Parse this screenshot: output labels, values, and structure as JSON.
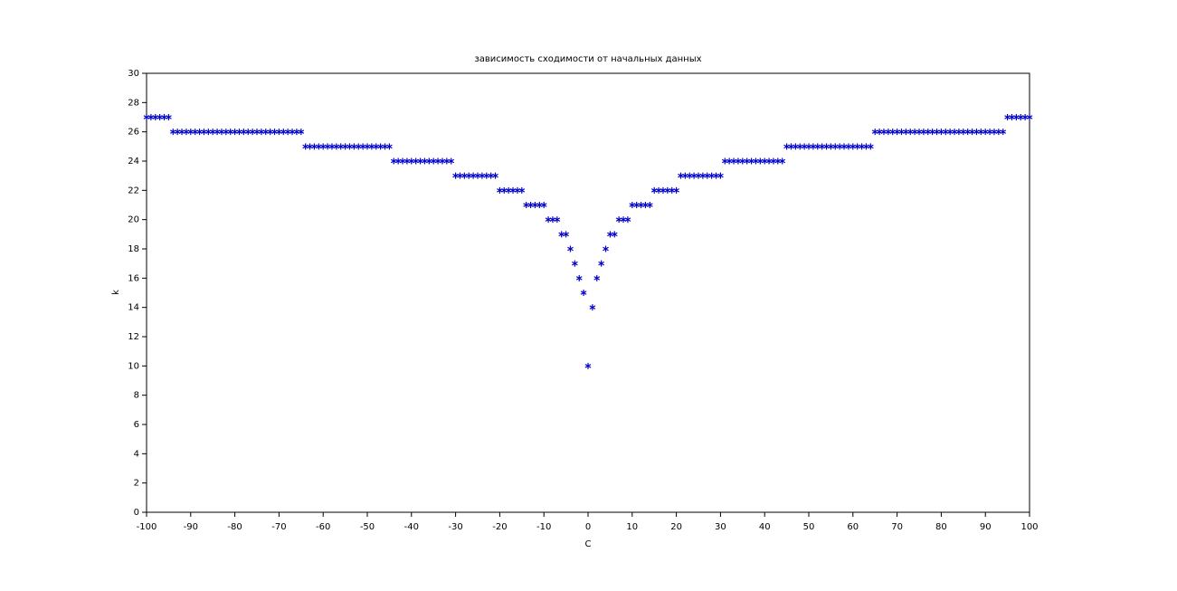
{
  "chart_data": {
    "type": "scatter",
    "title": "зависимость сходимости от начальных данных",
    "x_label": "C",
    "y_label": "k",
    "marker": "*",
    "color": "#0000cc",
    "x": [
      -100,
      -99,
      -98,
      -97,
      -96,
      -95,
      -94,
      -93,
      -92,
      -91,
      -90,
      -89,
      -88,
      -87,
      -86,
      -85,
      -84,
      -83,
      -82,
      -81,
      -80,
      -79,
      -78,
      -77,
      -76,
      -75,
      -74,
      -73,
      -72,
      -71,
      -70,
      -69,
      -68,
      -67,
      -66,
      -65,
      -64,
      -63,
      -62,
      -61,
      -60,
      -59,
      -58,
      -57,
      -56,
      -55,
      -54,
      -53,
      -52,
      -51,
      -50,
      -49,
      -48,
      -47,
      -46,
      -45,
      -44,
      -43,
      -42,
      -41,
      -40,
      -39,
      -38,
      -37,
      -36,
      -35,
      -34,
      -33,
      -32,
      -31,
      -30,
      -29,
      -28,
      -27,
      -26,
      -25,
      -24,
      -23,
      -22,
      -21,
      -20,
      -19,
      -18,
      -17,
      -16,
      -15,
      -14,
      -13,
      -12,
      -11,
      -10,
      -9,
      -8,
      -7,
      -6,
      -5,
      -4,
      -3,
      -2,
      -1,
      0,
      1,
      2,
      3,
      4,
      5,
      6,
      7,
      8,
      9,
      10,
      11,
      12,
      13,
      14,
      15,
      16,
      17,
      18,
      19,
      20,
      21,
      22,
      23,
      24,
      25,
      26,
      27,
      28,
      29,
      30,
      31,
      32,
      33,
      34,
      35,
      36,
      37,
      38,
      39,
      40,
      41,
      42,
      43,
      44,
      45,
      46,
      47,
      48,
      49,
      50,
      51,
      52,
      53,
      54,
      55,
      56,
      57,
      58,
      59,
      60,
      61,
      62,
      63,
      64,
      65,
      66,
      67,
      68,
      69,
      70,
      71,
      72,
      73,
      74,
      75,
      76,
      77,
      78,
      79,
      80,
      81,
      82,
      83,
      84,
      85,
      86,
      87,
      88,
      89,
      90,
      91,
      92,
      93,
      94,
      95,
      96,
      97,
      98,
      99,
      100
    ],
    "values": [
      27,
      27,
      27,
      27,
      27,
      27,
      26,
      26,
      26,
      26,
      26,
      26,
      26,
      26,
      26,
      26,
      26,
      26,
      26,
      26,
      26,
      26,
      26,
      26,
      26,
      26,
      26,
      26,
      26,
      26,
      26,
      26,
      26,
      26,
      26,
      26,
      25,
      25,
      25,
      25,
      25,
      25,
      25,
      25,
      25,
      25,
      25,
      25,
      25,
      25,
      25,
      25,
      25,
      25,
      25,
      25,
      24,
      24,
      24,
      24,
      24,
      24,
      24,
      24,
      24,
      24,
      24,
      24,
      24,
      24,
      23,
      23,
      23,
      23,
      23,
      23,
      23,
      23,
      23,
      23,
      22,
      22,
      22,
      22,
      22,
      22,
      21,
      21,
      21,
      21,
      21,
      20,
      20,
      20,
      19,
      19,
      18,
      17,
      16,
      15,
      10,
      14,
      16,
      17,
      18,
      19,
      19,
      20,
      20,
      20,
      21,
      21,
      21,
      21,
      21,
      22,
      22,
      22,
      22,
      22,
      22,
      23,
      23,
      23,
      23,
      23,
      23,
      23,
      23,
      23,
      23,
      24,
      24,
      24,
      24,
      24,
      24,
      24,
      24,
      24,
      24,
      24,
      24,
      24,
      24,
      25,
      25,
      25,
      25,
      25,
      25,
      25,
      25,
      25,
      25,
      25,
      25,
      25,
      25,
      25,
      25,
      25,
      25,
      25,
      25,
      26,
      26,
      26,
      26,
      26,
      26,
      26,
      26,
      26,
      26,
      26,
      26,
      26,
      26,
      26,
      26,
      26,
      26,
      26,
      26,
      26,
      26,
      26,
      26,
      26,
      26,
      26,
      26,
      26,
      26,
      27,
      27,
      27,
      27,
      27,
      27
    ],
    "xlim": [
      -100,
      100
    ],
    "xticks": [
      -100,
      -90,
      -80,
      -70,
      -60,
      -50,
      -40,
      -30,
      -20,
      -10,
      0,
      10,
      20,
      30,
      40,
      50,
      60,
      70,
      80,
      90,
      100
    ],
    "ylim": [
      0,
      30
    ],
    "yticks": [
      0,
      2,
      4,
      6,
      8,
      10,
      12,
      14,
      16,
      18,
      20,
      22,
      24,
      26,
      28,
      30
    ]
  }
}
